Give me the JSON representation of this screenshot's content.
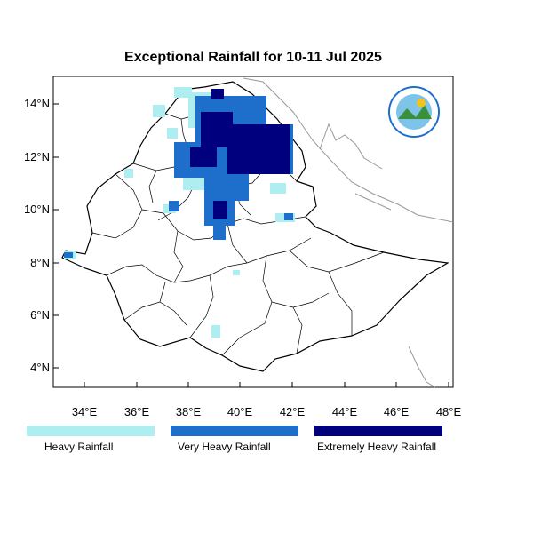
{
  "title": "Exceptional Rainfall for 10-11 Jul 2025",
  "map": {
    "lat_ticks": [
      "14°N",
      "12°N",
      "10°N",
      "8°N",
      "6°N",
      "4°N"
    ],
    "lon_ticks": [
      "34°E",
      "36°E",
      "38°E",
      "40°E",
      "42°E",
      "44°E",
      "46°E",
      "48°E"
    ],
    "lon_range": [
      32.9,
      48.1
    ],
    "lat_range": [
      3.3,
      15.0
    ]
  },
  "legend": [
    {
      "label": "Heavy Rainfall",
      "color": "#aeeef0"
    },
    {
      "label": "Very Heavy Rainfall",
      "color": "#1e6fcc"
    },
    {
      "label": "Extremely Heavy Rainfall",
      "color": "#00007f"
    }
  ],
  "logo": {
    "icon": "ethiopian-meteorology-institute-logo"
  }
}
